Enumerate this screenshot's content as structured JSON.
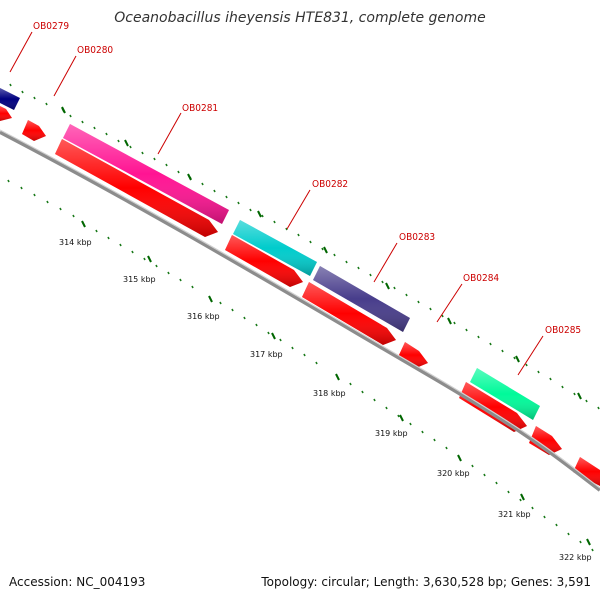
{
  "title": "Oceanobacillus iheyensis HTE831, complete genome",
  "accession": "Accession: NC_004193",
  "summary": "Topology: circular; Length: 3,630,528 bp; Genes: 3,591",
  "colors": {
    "backbone": "#8c8c8c",
    "reverse_strand": "#ff0000",
    "tick_green": "#1a7a1a",
    "tick_dark": "#006600",
    "label_red": "#cc0000"
  },
  "gene_labels": [
    {
      "name": "OB0279",
      "color": "#000080"
    },
    {
      "name": "OB0280",
      "color": "#ff0000"
    },
    {
      "name": "OB0281",
      "color": "#ff1493"
    },
    {
      "name": "OB0282",
      "color": "#00cccc"
    },
    {
      "name": "OB0283",
      "color": "#483d8b"
    },
    {
      "name": "OB0284",
      "color": "#ff0000"
    },
    {
      "name": "OB0285",
      "color": "#00fa9a"
    }
  ],
  "kbp_labels": [
    "314 kbp",
    "315 kbp",
    "316 kbp",
    "317 kbp",
    "318 kbp",
    "319 kbp",
    "320 kbp",
    "321 kbp",
    "322 kbp"
  ]
}
